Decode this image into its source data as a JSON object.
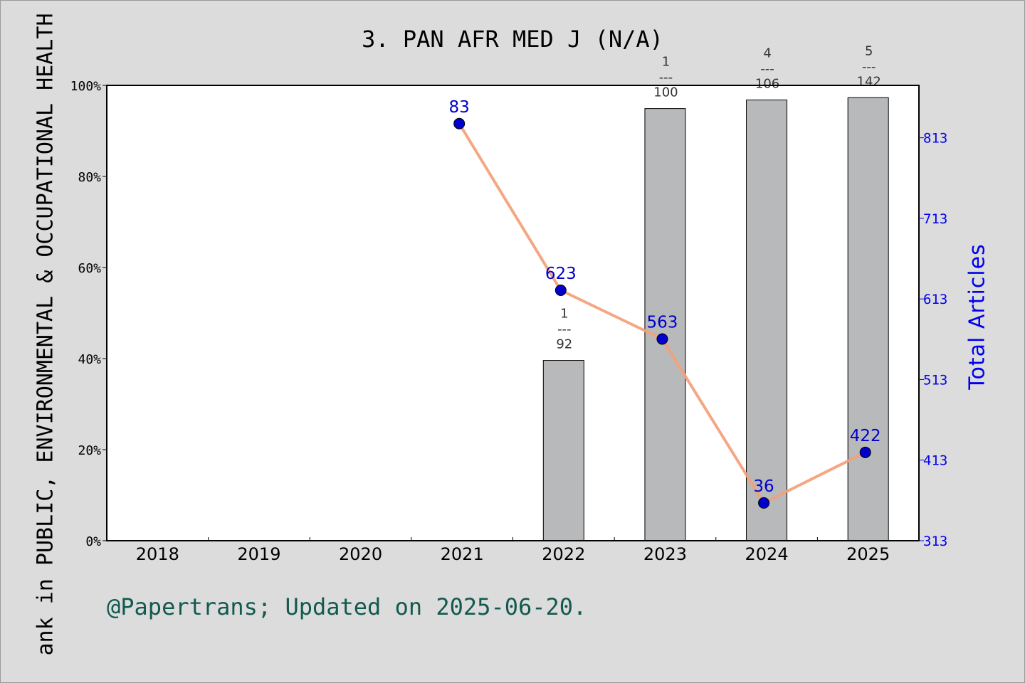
{
  "chart_data": {
    "type": "bar+line",
    "title": "3. PAN AFR MED J (N/A)",
    "ylabel_left": "ank in PUBLIC, ENVIRONMENTAL & OCCUPATIONAL HEALTH",
    "ylabel_right": "Total Articles",
    "categories": [
      "2018",
      "2019",
      "2020",
      "2021",
      "2022",
      "2023",
      "2024",
      "2025"
    ],
    "left_axis": {
      "ticks": [
        "0%",
        "20%",
        "40%",
        "60%",
        "80%",
        "100%"
      ],
      "range": [
        0,
        100
      ]
    },
    "right_axis": {
      "ticks": [
        "313",
        "413",
        "513",
        "613",
        "713",
        "813"
      ],
      "range": [
        313,
        878
      ]
    },
    "bars": {
      "values": [
        null,
        null,
        null,
        null,
        39.6,
        94.9,
        96.8,
        97.3
      ],
      "labels": [
        null,
        null,
        null,
        null,
        {
          "top": "1",
          "sep": "---",
          "bottom": "92"
        },
        {
          "top": "1",
          "sep": "---",
          "bottom": "100"
        },
        {
          "top": "4",
          "sep": "---",
          "bottom": "106"
        },
        {
          "top": "5",
          "sep": "---",
          "bottom": "142"
        }
      ]
    },
    "line": {
      "values": [
        null,
        null,
        null,
        83,
        623,
        563,
        36,
        422
      ],
      "positions": [
        null,
        null,
        null,
        91.6,
        55.0,
        44.3,
        8.3,
        19.4
      ],
      "color": "#f4a07a",
      "marker_color": "#0000cc"
    },
    "bar_color": "#b8b9bb",
    "grid": false
  },
  "footer": {
    "note": "@Papertrans; Updated on 2025-06-20."
  }
}
